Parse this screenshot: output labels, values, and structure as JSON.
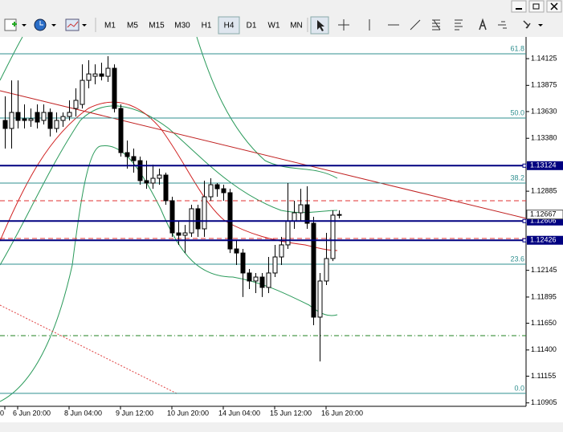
{
  "toolbar": {
    "timeframes": [
      "M1",
      "M5",
      "M15",
      "M30",
      "H1",
      "H4",
      "D1",
      "W1",
      "MN"
    ],
    "active": "H4"
  },
  "chart_data": {
    "type": "candlestick",
    "open": [
      1.13547,
      1.13472,
      1.13622,
      1.13562,
      1.13547,
      1.13622,
      1.13547,
      1.13622,
      1.13472,
      1.13547,
      1.13584,
      1.13659,
      1.13697,
      1.13922,
      1.1396,
      1.13982,
      1.1396,
      1.14035,
      1.13659,
      1.13246,
      1.13209,
      1.13171,
      1.12984,
      1.12961,
      1.13006,
      1.13036,
      1.12796,
      1.12495,
      1.12473,
      1.12495,
      1.12721,
      1.12533,
      1.12833,
      1.12946,
      1.12908,
      1.12871,
      1.12345,
      1.12307,
      1.1212,
      1.12045,
      1.12082,
      1.11985,
      1.1212,
      1.1227,
      1.12383,
      1.12608,
      1.12683,
      1.12758,
      1.12585,
      1.11707,
      1.12045,
      1.12255,
      1.12661
    ],
    "high": [
      1.13772,
      1.13922,
      1.13922,
      1.13697,
      1.13659,
      1.13697,
      1.13697,
      1.13659,
      1.13622,
      1.13622,
      1.13735,
      1.13847,
      1.14072,
      1.1411,
      1.14072,
      1.14087,
      1.14148,
      1.14072,
      1.13697,
      1.13359,
      1.13284,
      1.13209,
      1.13171,
      1.13134,
      1.13096,
      1.13059,
      1.12833,
      1.12608,
      1.1257,
      1.12758,
      1.12758,
      1.12984,
      1.13006,
      1.12961,
      1.12946,
      1.12908,
      1.1242,
      1.12345,
      1.12157,
      1.1212,
      1.1212,
      1.1227,
      1.12383,
      1.12458,
      1.12961,
      1.12796,
      1.12908,
      1.12931,
      1.12646,
      1.1212,
      1.12495,
      1.12706,
      1.12706
    ],
    "low": [
      1.13284,
      1.13284,
      1.13472,
      1.13472,
      1.13487,
      1.13472,
      1.13509,
      1.13397,
      1.13434,
      1.13487,
      1.13547,
      1.13584,
      1.13659,
      1.13847,
      1.13885,
      1.13922,
      1.13907,
      1.13622,
      1.13209,
      1.13096,
      1.13059,
      1.12946,
      1.12908,
      1.12908,
      1.12946,
      1.12758,
      1.12458,
      1.12383,
      1.12307,
      1.12458,
      1.12458,
      1.12458,
      1.12796,
      1.12833,
      1.12796,
      1.12307,
      1.12195,
      1.11895,
      1.1197,
      1.11932,
      1.11895,
      1.11932,
      1.12082,
      1.12195,
      1.12345,
      1.12533,
      1.12608,
      1.12533,
      1.11632,
      1.11293,
      1.12007,
      1.12232,
      1.12631
    ],
    "close": [
      1.13472,
      1.13622,
      1.13547,
      1.13547,
      1.13562,
      1.13532,
      1.13622,
      1.13472,
      1.13547,
      1.13584,
      1.13622,
      1.13735,
      1.13922,
      1.13982,
      1.13982,
      1.1396,
      1.14035,
      1.13659,
      1.13246,
      1.13209,
      1.13171,
      1.12984,
      1.12961,
      1.13006,
      1.13036,
      1.12796,
      1.12495,
      1.12473,
      1.12495,
      1.12721,
      1.12533,
      1.12833,
      1.12946,
      1.12908,
      1.12871,
      1.12345,
      1.12307,
      1.1212,
      1.12045,
      1.12082,
      1.11985,
      1.1212,
      1.1227,
      1.12383,
      1.12608,
      1.12683,
      1.12758,
      1.12585,
      1.11707,
      1.12045,
      1.12255,
      1.12661,
      1.12667
    ],
    "up_color": "#ffffff",
    "down_color": "#000000",
    "ylim": [
      1.10873,
      1.14283
    ],
    "yticks": [
      1.14125,
      1.13875,
      {
        "value": 1.1363,
        "label": "1.13630"
      },
      {
        "value": 1.1338,
        "label": "1.13380"
      },
      1.12885,
      1.12145,
      1.11895,
      {
        "value": 1.1165,
        "label": "1.11650"
      },
      {
        "value": 1.114,
        "label": "1.11400"
      },
      1.11155,
      1.10905
    ],
    "xlim": [
      -0.75,
      81.125
    ],
    "xticks": [
      {
        "value": 0,
        "label": "0"
      },
      {
        "value": 2,
        "label": "6 Jun 20:00"
      },
      {
        "value": 10,
        "label": "8 Jun 04:00"
      },
      {
        "value": 18,
        "label": "9 Jun 12:00"
      },
      {
        "value": 26,
        "label": "10 Jun 20:00"
      },
      {
        "value": 34,
        "label": "14 Jun 04:00"
      },
      {
        "value": 42,
        "label": "15 Jun 12:00"
      },
      {
        "value": 50,
        "label": "16 Jun 20:00"
      }
    ],
    "levels": [
      {
        "label": "61.8",
        "value": 1.1417
      },
      {
        "label": "50.0",
        "value": 1.13569
      },
      {
        "label": "38.2",
        "value": 1.12961
      },
      {
        "label": "23.6",
        "value": 1.12202
      },
      {
        "label": "0.0",
        "value": 1.10994
      }
    ],
    "level_color": "#2f8f8f",
    "price_lines": [
      {
        "value": 1.13124
      },
      {
        "value": 1.12606
      },
      {
        "value": 1.12426
      }
    ],
    "price_line_color": "#000080",
    "dashed_lines": [
      {
        "value": 1.12796,
        "color": "#e03030"
      },
      {
        "value": 1.12443,
        "color": "#e03030"
      },
      {
        "value": 1.11534,
        "color": "#208020"
      }
    ],
    "bid": 1.12667
  }
}
